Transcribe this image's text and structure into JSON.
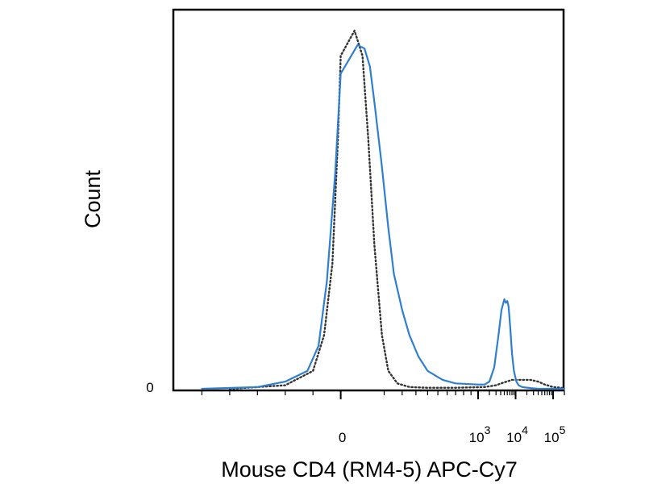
{
  "chart_data": {
    "type": "line",
    "title": "",
    "xlabel": "Mouse CD4 (RM4-5) APC-Cy7",
    "ylabel": "Count",
    "x_scale": "biexponential (linear near 0, logarithmic above 10^3)",
    "xlim": [
      -600,
      200000
    ],
    "ylim": [
      0,
      1
    ],
    "x_ticks": [
      {
        "value": 0,
        "base": "0",
        "exp": ""
      },
      {
        "value": 1000,
        "base": "10",
        "exp": "3"
      },
      {
        "value": 10000,
        "base": "10",
        "exp": "4"
      },
      {
        "value": 100000,
        "base": "10",
        "exp": "5"
      }
    ],
    "y_ticks": [
      {
        "value": 0,
        "label": "0"
      }
    ],
    "grid": false,
    "legend": "none",
    "series": [
      {
        "style": "dotted",
        "color": "#333333",
        "x": [
          -400,
          -200,
          -100,
          -60,
          -30,
          -10,
          0,
          10,
          25,
          40,
          60,
          90,
          120,
          170,
          250,
          400,
          700,
          1500,
          3000,
          5000,
          8000,
          15000,
          25000,
          40000,
          60000,
          100000,
          200000
        ],
        "y": [
          0.0,
          0.01,
          0.05,
          0.15,
          0.35,
          0.7,
          0.93,
          1.0,
          0.93,
          0.7,
          0.4,
          0.15,
          0.05,
          0.015,
          0.005,
          0.003,
          0.003,
          0.005,
          0.01,
          0.018,
          0.025,
          0.025,
          0.025,
          0.02,
          0.012,
          0.005,
          0.002
        ]
      },
      {
        "style": "solid",
        "color": "#2f7fd1",
        "x": [
          -500,
          -300,
          -200,
          -120,
          -80,
          -50,
          -20,
          0,
          15,
          30,
          45,
          60,
          90,
          120,
          150,
          200,
          250,
          320,
          400,
          550,
          700,
          1000,
          1500,
          2000,
          2700,
          3500,
          4200,
          5000,
          5500,
          6000,
          6500,
          7200,
          8000,
          9000,
          10500,
          12000,
          15000,
          25000,
          40000,
          70000,
          200000
        ],
        "y": [
          0.0,
          0.005,
          0.02,
          0.05,
          0.12,
          0.3,
          0.6,
          0.88,
          0.96,
          0.95,
          0.9,
          0.8,
          0.62,
          0.45,
          0.32,
          0.22,
          0.15,
          0.09,
          0.05,
          0.025,
          0.015,
          0.012,
          0.012,
          0.02,
          0.06,
          0.15,
          0.22,
          0.25,
          0.24,
          0.245,
          0.23,
          0.17,
          0.1,
          0.05,
          0.02,
          0.01,
          0.005,
          0.002,
          0.0,
          0.0,
          0.0
        ]
      }
    ]
  }
}
